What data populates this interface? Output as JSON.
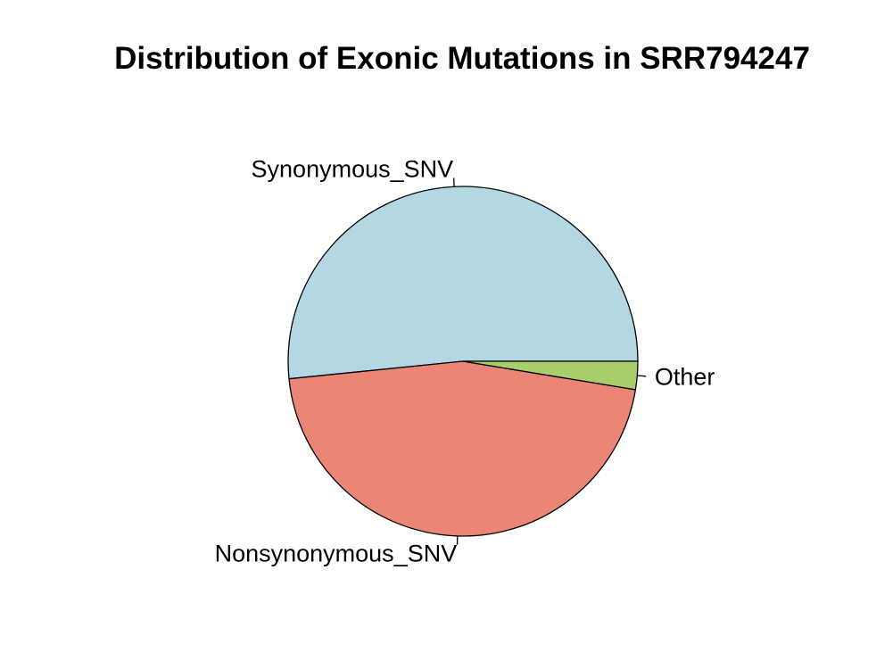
{
  "chart_data": {
    "type": "pie",
    "title": "Distribution of Exonic Mutations in SRR794247",
    "direction": "counterclockwise",
    "start_angle_deg": 0,
    "slices": [
      {
        "label": "Synonymous_SNV",
        "value": 51.6,
        "color": "#B4D8E3"
      },
      {
        "label": "Nonsynonymous_SNV",
        "value": 45.8,
        "color": "#EB8677"
      },
      {
        "label": "Other",
        "value": 2.6,
        "color": "#A9CF6C"
      }
    ]
  }
}
